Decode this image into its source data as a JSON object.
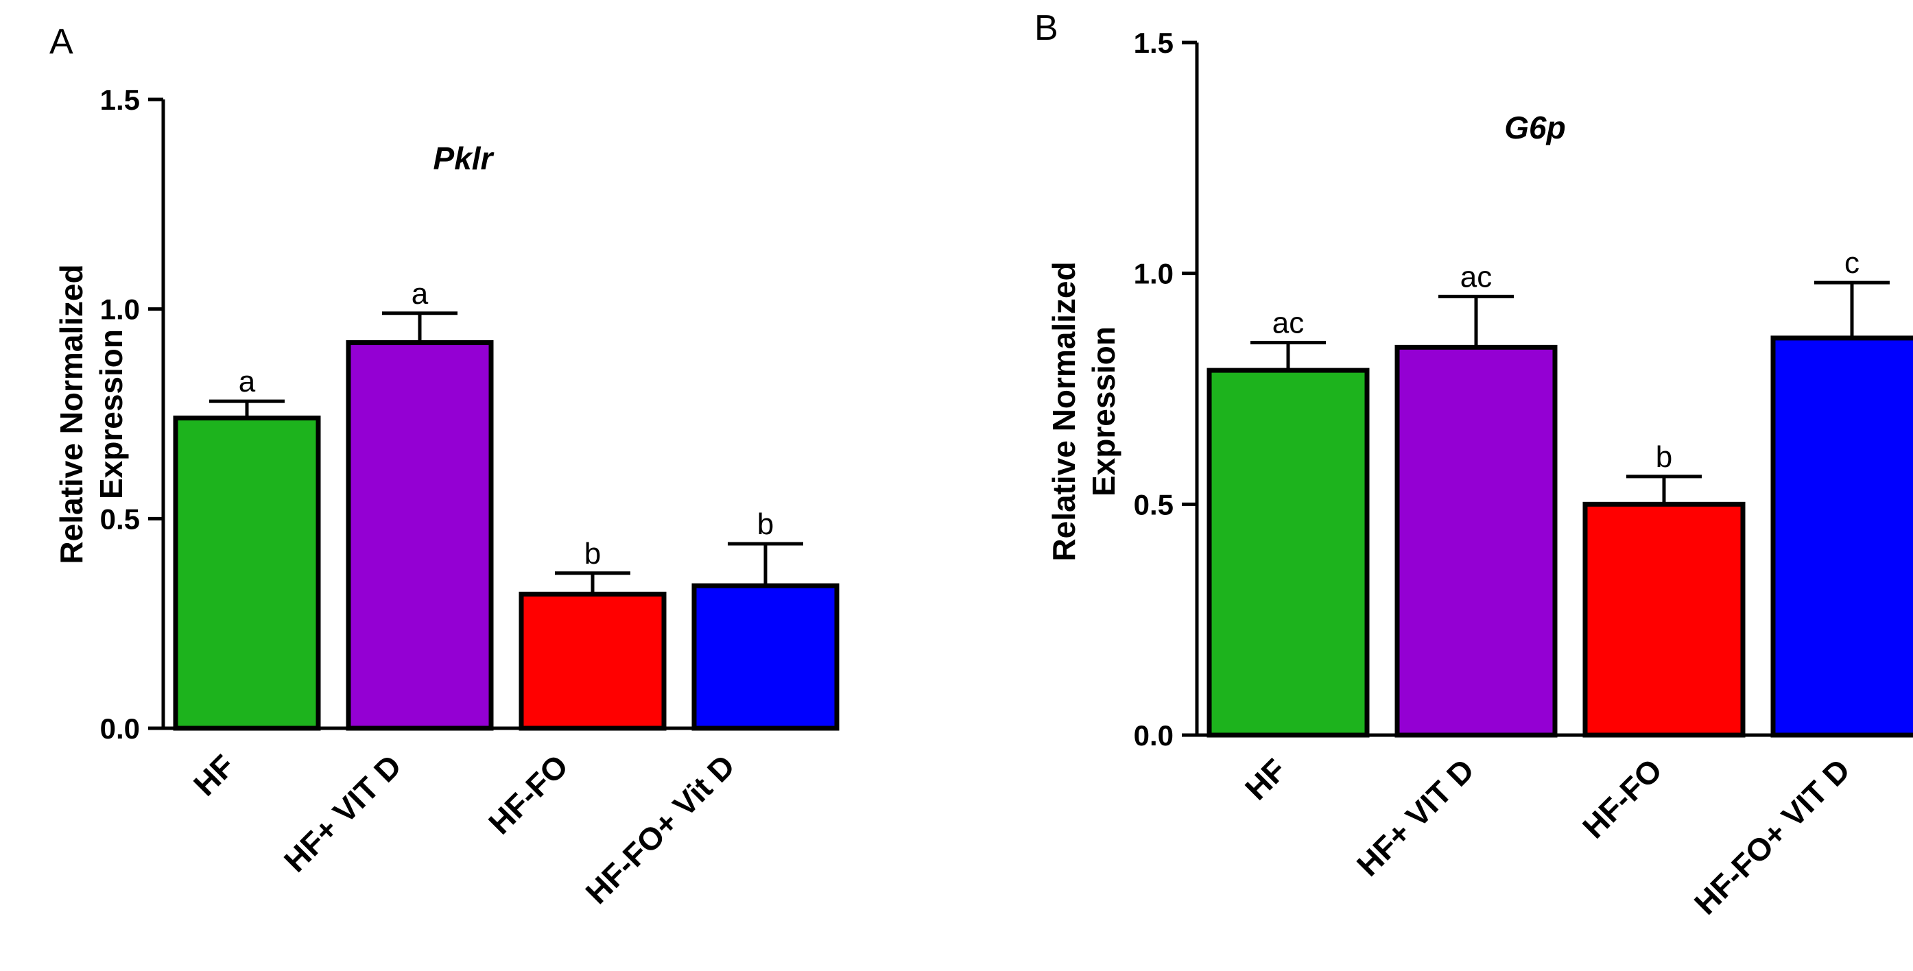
{
  "chart_data": [
    {
      "panel": "A",
      "type": "bar",
      "title": "Pklr",
      "xlabel": "",
      "ylabel": "Relative Normalized Expression",
      "ylabel_lines": [
        "Relative Normalized",
        "Expression"
      ],
      "ylim": [
        0,
        1.5
      ],
      "yticks": [
        0.0,
        0.5,
        1.0,
        1.5
      ],
      "ytick_labels": [
        "0.0",
        "0.5",
        "1.0",
        "1.5"
      ],
      "categories": [
        "HF",
        "HF+ VIT D",
        "HF-FO",
        "HF-FO+ Vit D"
      ],
      "values": [
        0.74,
        0.92,
        0.32,
        0.34
      ],
      "errors": [
        0.04,
        0.07,
        0.05,
        0.1
      ],
      "significance": [
        "a",
        "a",
        "b",
        "b"
      ],
      "colors": [
        "#1db31d",
        "#9400d3",
        "#ff0000",
        "#0000ff"
      ],
      "grid": false
    },
    {
      "panel": "B",
      "type": "bar",
      "title": "G6p",
      "xlabel": "",
      "ylabel": "Relative Normalized Expression",
      "ylabel_lines": [
        "Relative Normalized",
        "Expression"
      ],
      "ylim": [
        0,
        1.5
      ],
      "yticks": [
        0.0,
        0.5,
        1.0,
        1.5
      ],
      "ytick_labels": [
        "0.0",
        "0.5",
        "1.0",
        "1.5"
      ],
      "categories": [
        "HF",
        "HF+ VIT D",
        "HF-FO",
        "HF-FO+ VIT D"
      ],
      "values": [
        0.79,
        0.84,
        0.5,
        0.86
      ],
      "errors": [
        0.06,
        0.11,
        0.06,
        0.12
      ],
      "significance": [
        "ac",
        "ac",
        "b",
        "c"
      ],
      "colors": [
        "#1db31d",
        "#9400d3",
        "#ff0000",
        "#0000ff"
      ],
      "grid": false
    }
  ]
}
